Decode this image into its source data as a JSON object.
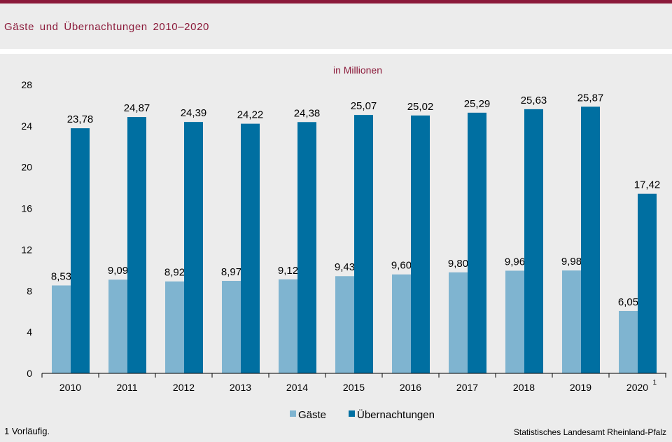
{
  "header": {
    "title": "Gäste  und  Übernachtungen  2010–2020",
    "accent_color": "#8b1a3a"
  },
  "footer": {
    "footnote": "1 Vorläufig.",
    "source": "Statistisches Landesamt Rheinland-Pfalz"
  },
  "chart_data": {
    "type": "bar",
    "unit_label": "in Millionen",
    "categories": [
      "2010",
      "2011",
      "2012",
      "2013",
      "2014",
      "2015",
      "2016",
      "2017",
      "2018",
      "2019",
      "2020"
    ],
    "category_footnotes": [
      "",
      "",
      "",
      "",
      "",
      "",
      "",
      "",
      "",
      "",
      "1"
    ],
    "series": [
      {
        "name": "Gäste",
        "color": "#7fb4d0",
        "values": [
          8.53,
          9.09,
          8.92,
          8.97,
          9.12,
          9.43,
          9.6,
          9.8,
          9.96,
          9.98,
          6.05
        ],
        "labels": [
          "8,53",
          "9,09",
          "8,92",
          "8,97",
          "9,12",
          "9,43",
          "9,60",
          "9,80",
          "9,96",
          "9,98",
          "6,05"
        ]
      },
      {
        "name": "Übernachtungen",
        "color": "#006fa1",
        "values": [
          23.78,
          24.87,
          24.39,
          24.22,
          24.38,
          25.07,
          25.02,
          25.29,
          25.63,
          25.87,
          17.42
        ],
        "labels": [
          "23,78",
          "24,87",
          "24,39",
          "24,22",
          "24,38",
          "25,07",
          "25,02",
          "25,29",
          "25,63",
          "25,87",
          "17,42"
        ]
      }
    ],
    "ylim": [
      0,
      28
    ],
    "yticks": [
      0,
      4,
      8,
      12,
      16,
      20,
      24,
      28
    ],
    "xlabel": "",
    "ylabel": "",
    "grid": false,
    "legend_position": "bottom"
  }
}
